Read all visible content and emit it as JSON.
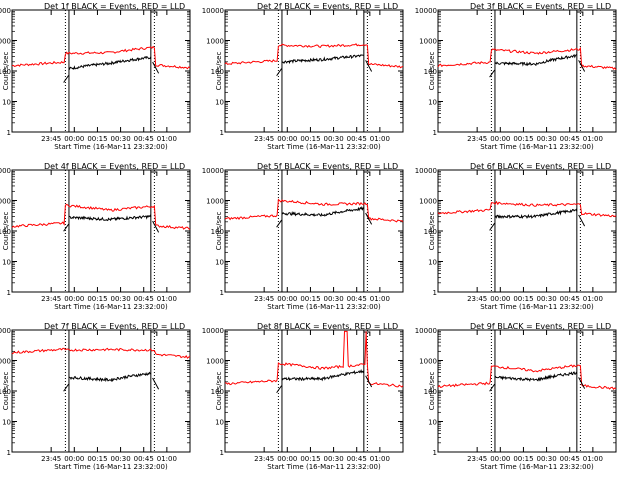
{
  "colors": {
    "events": "#000000",
    "lld": "#ff0000",
    "axis": "#000000",
    "background": "#ffffff"
  },
  "shared": {
    "ylabel": "Counts/sec",
    "xlabel": "Start Time (16-Mar-11 23:32:00)",
    "x_tick_labels": [
      "23:45",
      "00:00",
      "00:15",
      "00:30",
      "00:45",
      "01:00"
    ],
    "y_tick_labels": [
      "1",
      "10",
      "100",
      "1000",
      "10000"
    ],
    "title_suffix": "BLACK = Events, RED = LLD"
  },
  "chart_data": [
    {
      "type": "line",
      "title": "Det 1f BLACK = Events, RED = LLD",
      "ylim": [
        1,
        10000
      ],
      "yscale": "log",
      "xlabel": "Start Time (16-Mar-11 23:32:00)",
      "ylabel": "Counts/sec",
      "x_tick_labels": [
        "23:45",
        "00:00",
        "00:15",
        "00:30",
        "00:45",
        "01:00"
      ],
      "events_level": {
        "start": 120,
        "mid": 180,
        "end": 280
      },
      "lld_level": {
        "start": 380,
        "mid": 400,
        "end": 600
      },
      "outside_level": {
        "left": 150,
        "right": 160
      }
    },
    {
      "type": "line",
      "title": "Det 2f BLACK = Events, RED = LLD",
      "ylim": [
        1,
        10000
      ],
      "yscale": "log",
      "xlabel": "Start Time (16-Mar-11 23:32:00)",
      "ylabel": "Counts/sec",
      "x_tick_labels": [
        "23:45",
        "00:00",
        "00:15",
        "00:30",
        "00:45",
        "01:00"
      ],
      "events_level": {
        "start": 200,
        "mid": 240,
        "end": 320
      },
      "lld_level": {
        "start": 700,
        "mid": 650,
        "end": 750
      },
      "outside_level": {
        "left": 170,
        "right": 170
      }
    },
    {
      "type": "line",
      "title": "Det 3f BLACK = Events, RED = LLD",
      "ylim": [
        1,
        10000
      ],
      "yscale": "log",
      "xlabel": "Start Time (16-Mar-11 23:32:00)",
      "ylabel": "Counts/sec",
      "x_tick_labels": [
        "23:45",
        "00:00",
        "00:15",
        "00:30",
        "00:45",
        "01:00"
      ],
      "events_level": {
        "start": 180,
        "mid": 170,
        "end": 320
      },
      "lld_level": {
        "start": 500,
        "mid": 380,
        "end": 520
      },
      "outside_level": {
        "left": 150,
        "right": 150
      }
    },
    {
      "type": "line",
      "title": "Det 4f BLACK = Events, RED = LLD",
      "ylim": [
        1,
        10000
      ],
      "yscale": "log",
      "xlabel": "Start Time (16-Mar-11 23:32:00)",
      "ylabel": "Counts/sec",
      "x_tick_labels": [
        "23:45",
        "00:00",
        "00:15",
        "00:30",
        "00:45",
        "01:00"
      ],
      "events_level": {
        "start": 280,
        "mid": 240,
        "end": 300
      },
      "lld_level": {
        "start": 700,
        "mid": 480,
        "end": 650
      },
      "outside_level": {
        "left": 140,
        "right": 150
      }
    },
    {
      "type": "line",
      "title": "Det 5f BLACK = Events, RED = LLD",
      "ylim": [
        1,
        10000
      ],
      "yscale": "log",
      "xlabel": "Start Time (16-Mar-11 23:32:00)",
      "ylabel": "Counts/sec",
      "x_tick_labels": [
        "23:45",
        "00:00",
        "00:15",
        "00:30",
        "00:45",
        "01:00"
      ],
      "events_level": {
        "start": 380,
        "mid": 330,
        "end": 550
      },
      "lld_level": {
        "start": 1000,
        "mid": 750,
        "end": 800
      },
      "outside_level": {
        "left": 250,
        "right": 260
      }
    },
    {
      "type": "line",
      "title": "Det 6f BLACK = Events, RED = LLD",
      "ylim": [
        1,
        10000
      ],
      "yscale": "log",
      "xlabel": "Start Time (16-Mar-11 23:32:00)",
      "ylabel": "Counts/sec",
      "x_tick_labels": [
        "23:45",
        "00:00",
        "00:15",
        "00:30",
        "00:45",
        "01:00"
      ],
      "events_level": {
        "start": 300,
        "mid": 300,
        "end": 480
      },
      "lld_level": {
        "start": 850,
        "mid": 700,
        "end": 750
      },
      "outside_level": {
        "left": 380,
        "right": 380
      }
    },
    {
      "type": "line",
      "title": "Det 7f BLACK = Events, RED = LLD",
      "ylim": [
        1,
        10000
      ],
      "yscale": "log",
      "xlabel": "Start Time (16-Mar-11 23:32:00)",
      "ylabel": "Counts/sec",
      "x_tick_labels": [
        "23:45",
        "00:00",
        "00:15",
        "00:30",
        "00:45",
        "01:00"
      ],
      "events_level": {
        "start": 280,
        "mid": 230,
        "end": 380
      },
      "lld_level": {
        "start": 2200,
        "mid": 2300,
        "end": 2200
      },
      "outside_level": {
        "left": 1800,
        "right": 1600
      }
    },
    {
      "type": "line",
      "title": "Det 8f BLACK = Events, RED = LLD",
      "ylim": [
        1,
        10000
      ],
      "yscale": "log",
      "xlabel": "Start Time (16-Mar-11 23:32:00)",
      "ylabel": "Counts/sec",
      "x_tick_labels": [
        "23:45",
        "00:00",
        "00:15",
        "00:30",
        "00:45",
        "01:00"
      ],
      "events_level": {
        "start": 250,
        "mid": 250,
        "end": 450
      },
      "lld_level": {
        "start": 800,
        "mid": 550,
        "end": 750
      },
      "outside_level": {
        "left": 170,
        "right": 180
      },
      "lld_spikes": [
        0.68,
        0.8
      ]
    },
    {
      "type": "line",
      "title": "Det 9f BLACK = Events, RED = LLD",
      "ylim": [
        1,
        10000
      ],
      "yscale": "log",
      "xlabel": "Start Time (16-Mar-11 23:32:00)",
      "ylabel": "Counts/sec",
      "x_tick_labels": [
        "23:45",
        "00:00",
        "00:15",
        "00:30",
        "00:45",
        "01:00"
      ],
      "events_level": {
        "start": 280,
        "mid": 230,
        "end": 400
      },
      "lld_level": {
        "start": 650,
        "mid": 450,
        "end": 700
      },
      "outside_level": {
        "left": 140,
        "right": 150
      }
    }
  ]
}
